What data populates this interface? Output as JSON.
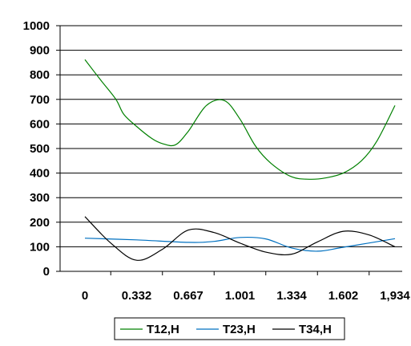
{
  "chart_data": {
    "type": "line",
    "title": "",
    "xlabel": "",
    "ylabel": "",
    "categories": [
      "0",
      "0.332",
      "0.667",
      "1.001",
      "1.334",
      "1.602",
      "1,934"
    ],
    "ylim": [
      0,
      1000
    ],
    "yticks": [
      0,
      100,
      200,
      300,
      400,
      500,
      600,
      700,
      800,
      900,
      1000
    ],
    "ytick_labels": [
      "0",
      "100",
      "200",
      "300",
      "400",
      "500",
      "600",
      "700",
      "800",
      "900",
      "1000"
    ],
    "grid": "horizontal",
    "smooth": true,
    "legend_position": "bottom",
    "series": [
      {
        "name": "T12,H",
        "color": "#008000",
        "x": [
          0,
          0.3,
          0.6,
          0.75,
          1.0,
          1.3,
          1.5,
          1.75,
          2.0,
          2.35,
          2.7,
          3.0,
          3.3,
          3.6,
          4.0,
          4.35,
          4.65,
          5.0,
          5.35,
          5.65,
          6.0
        ],
        "values": [
          862,
          780,
          700,
          640,
          590,
          540,
          520,
          515,
          570,
          675,
          695,
          620,
          510,
          440,
          385,
          375,
          380,
          400,
          450,
          530,
          675
        ]
      },
      {
        "name": "T23,H",
        "color": "#0070C0",
        "x": [
          0,
          1,
          2,
          2.5,
          3,
          3.5,
          4,
          4.5,
          5,
          6
        ],
        "values": [
          135,
          128,
          118,
          122,
          138,
          132,
          95,
          82,
          98,
          133
        ]
      },
      {
        "name": "T34,H",
        "color": "#000000",
        "x": [
          0,
          0.5,
          1,
          1.5,
          2,
          2.5,
          3,
          3.5,
          4,
          4.5,
          5,
          5.5,
          6
        ],
        "values": [
          223,
          115,
          45,
          90,
          168,
          158,
          115,
          78,
          70,
          120,
          163,
          148,
          100
        ]
      }
    ]
  }
}
